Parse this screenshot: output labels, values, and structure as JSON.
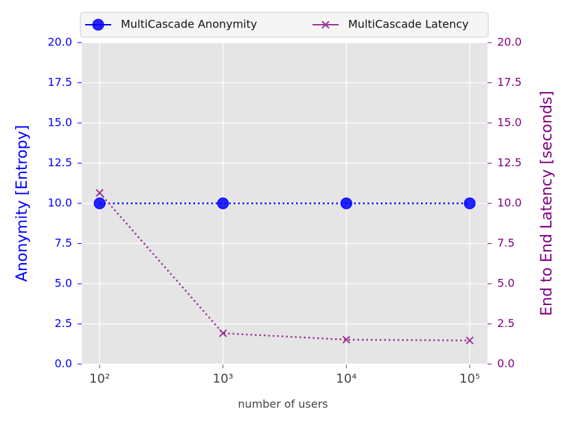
{
  "chart_data": {
    "type": "line",
    "xlabel": "number of users",
    "ylabel": "Anonymity [Entropy]",
    "y2label": "End to End Latency [seconds]",
    "xscale": "log",
    "x": [
      100,
      1000,
      10000,
      100000
    ],
    "xlim": [
      71.6,
      139600
    ],
    "xticks": [
      {
        "value": 100,
        "label": "10²"
      },
      {
        "value": 1000,
        "label": "10³"
      },
      {
        "value": 10000,
        "label": "10⁴"
      },
      {
        "value": 100000,
        "label": "10⁵"
      }
    ],
    "ylim": [
      0,
      20
    ],
    "yticks": [
      {
        "value": 0,
        "label": "0.0"
      },
      2.5,
      {
        "value": 5,
        "label": "5.0"
      },
      7.5,
      {
        "value": 10,
        "label": "10.0"
      },
      12.5,
      {
        "value": 15,
        "label": "15.0"
      },
      17.5,
      {
        "value": 20,
        "label": "20.0"
      }
    ],
    "y2lim": [
      0,
      20
    ],
    "y2ticks": [
      {
        "value": 0,
        "label": "0.0"
      },
      2.5,
      {
        "value": 5,
        "label": "5.0"
      },
      7.5,
      {
        "value": 10,
        "label": "10.0"
      },
      12.5,
      {
        "value": 15,
        "label": "15.0"
      },
      17.5,
      {
        "value": 20,
        "label": "20.0"
      }
    ],
    "ylabel_color": "#0000ff",
    "y2label_color": "#800080",
    "grid": true,
    "legend": "upper center",
    "series": [
      {
        "name": "MultiCascade Anonymity",
        "color": "#0000ff",
        "marker": "circle",
        "linestyle": "dotted",
        "values": [
          10,
          10,
          10,
          10
        ]
      },
      {
        "name": "MultiCascade Latency",
        "color": "#993399",
        "marker": "x",
        "linestyle": "dotted",
        "axis": "y2",
        "values": [
          10.65,
          1.92,
          1.52,
          1.47
        ]
      }
    ]
  }
}
